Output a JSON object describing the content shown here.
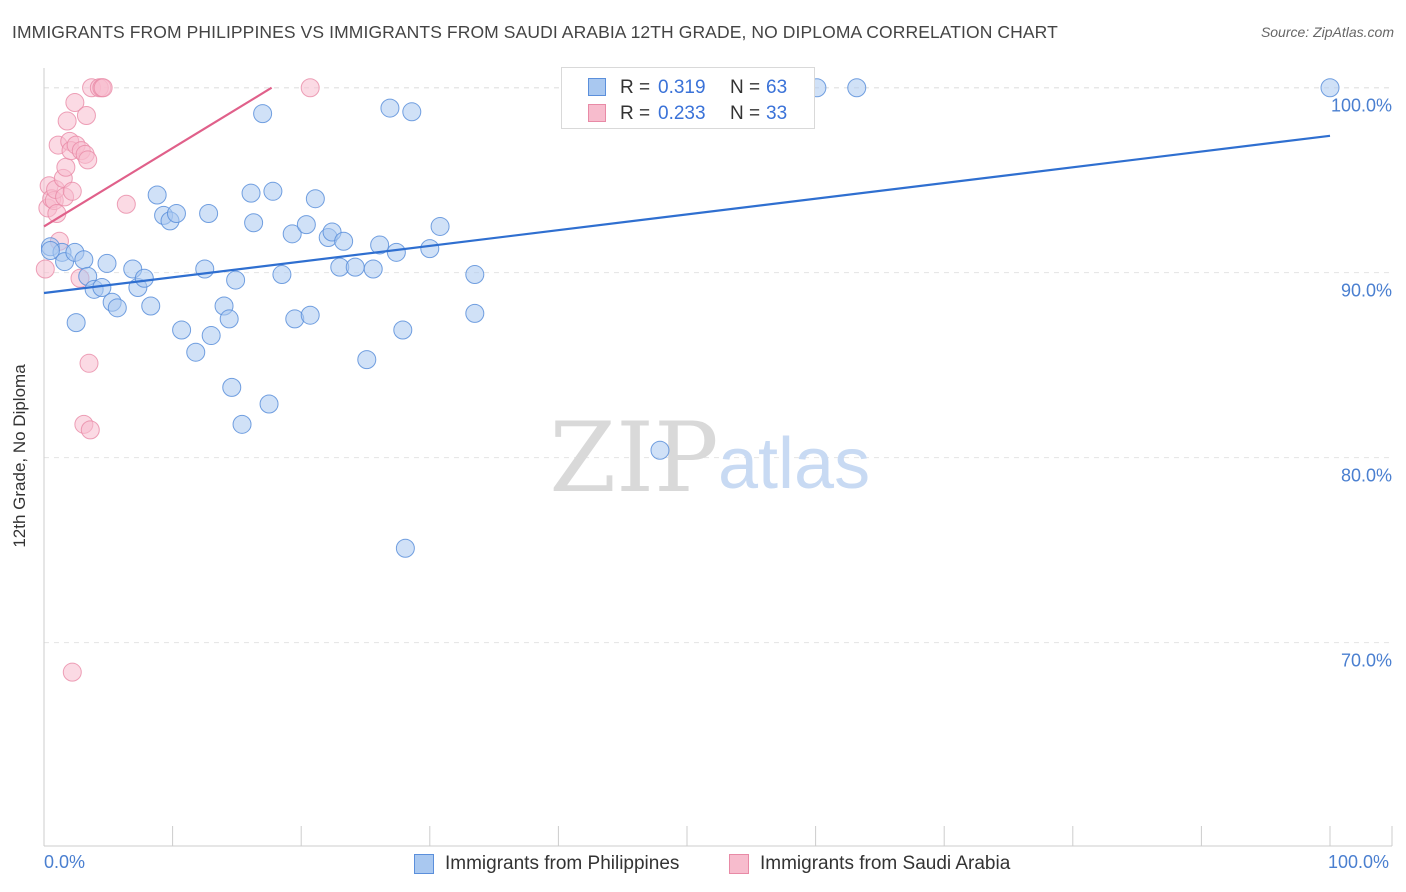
{
  "header": {
    "title": "IMMIGRANTS FROM PHILIPPINES VS IMMIGRANTS FROM SAUDI ARABIA 12TH GRADE, NO DIPLOMA CORRELATION CHART",
    "source": "Source: ZipAtlas.com"
  },
  "watermark": {
    "zip": "ZIP",
    "atlas": "atlas"
  },
  "colors": {
    "blue": "#5b8fdb",
    "blue_fill": "#a9c8f0",
    "blue_line": "#2f6fd0",
    "pink": "#e88aa6",
    "pink_fill": "#f7bccd",
    "pink_line": "#e0608a",
    "tick_label": "#4a7fd0"
  },
  "legend": {
    "rows": [
      {
        "r_label": "R =",
        "r_value": "0.319",
        "n_label": "N =",
        "n_value": "63"
      },
      {
        "r_label": "R =",
        "r_value": "0.233",
        "n_label": "N =",
        "n_value": "33"
      }
    ]
  },
  "bottom_legend": {
    "series1": "Immigrants from Philippines",
    "series2": "Immigrants from Saudi Arabia"
  },
  "chart_data": {
    "type": "scatter",
    "title": "IMMIGRANTS FROM PHILIPPINES VS IMMIGRANTS FROM SAUDI ARABIA 12TH GRADE, NO DIPLOMA CORRELATION CHART",
    "xlabel": "",
    "ylabel": "12th Grade, No Diploma",
    "xlim": [
      0,
      100
    ],
    "ylim": [
      59,
      101.5
    ],
    "x_tick_labels": [
      "0.0%",
      "100.0%"
    ],
    "y_ticks": [
      70,
      80,
      90,
      100
    ],
    "y_tick_labels": [
      "70.0%",
      "80.0%",
      "90.0%",
      "100.0%"
    ],
    "grid": true,
    "series": [
      {
        "name": "Immigrants from Philippines",
        "R": 0.319,
        "N": 63,
        "trend": {
          "x": [
            0,
            100
          ],
          "y": [
            88.9,
            97.4
          ]
        },
        "points": [
          [
            0.5,
            91.4
          ],
          [
            1.4,
            91.1
          ],
          [
            1.6,
            90.6
          ],
          [
            2.4,
            91.1
          ],
          [
            3.1,
            90.7
          ],
          [
            2.5,
            87.3
          ],
          [
            3.4,
            89.8
          ],
          [
            3.9,
            89.1
          ],
          [
            4.5,
            89.2
          ],
          [
            4.9,
            90.5
          ],
          [
            5.3,
            88.4
          ],
          [
            5.7,
            88.1
          ],
          [
            6.9,
            90.2
          ],
          [
            7.3,
            89.2
          ],
          [
            7.8,
            89.7
          ],
          [
            8.3,
            88.2
          ],
          [
            8.8,
            94.2
          ],
          [
            9.3,
            93.1
          ],
          [
            9.8,
            92.8
          ],
          [
            10.3,
            93.2
          ],
          [
            10.7,
            86.9
          ],
          [
            11.8,
            85.7
          ],
          [
            12.5,
            90.2
          ],
          [
            12.8,
            93.2
          ],
          [
            13.0,
            86.6
          ],
          [
            14.0,
            88.2
          ],
          [
            14.4,
            87.5
          ],
          [
            14.9,
            89.6
          ],
          [
            14.6,
            83.8
          ],
          [
            15.4,
            81.8
          ],
          [
            16.1,
            94.3
          ],
          [
            16.3,
            92.7
          ],
          [
            17.0,
            98.6
          ],
          [
            17.5,
            82.9
          ],
          [
            17.8,
            94.4
          ],
          [
            18.5,
            89.9
          ],
          [
            19.3,
            92.1
          ],
          [
            19.5,
            87.5
          ],
          [
            20.4,
            92.6
          ],
          [
            20.7,
            87.7
          ],
          [
            21.1,
            94.0
          ],
          [
            22.1,
            91.9
          ],
          [
            22.4,
            92.2
          ],
          [
            23.0,
            90.3
          ],
          [
            23.3,
            91.7
          ],
          [
            24.2,
            90.3
          ],
          [
            25.1,
            85.3
          ],
          [
            25.6,
            90.2
          ],
          [
            26.1,
            91.5
          ],
          [
            26.9,
            98.9
          ],
          [
            27.4,
            91.1
          ],
          [
            27.9,
            86.9
          ],
          [
            28.1,
            75.1
          ],
          [
            28.6,
            98.7
          ],
          [
            30.0,
            91.3
          ],
          [
            30.8,
            92.5
          ],
          [
            33.5,
            89.9
          ],
          [
            33.5,
            87.8
          ],
          [
            47.9,
            80.4
          ],
          [
            60.1,
            100.0
          ],
          [
            63.2,
            100.0
          ],
          [
            100.0,
            100.0
          ],
          [
            0.5,
            91.2
          ]
        ]
      },
      {
        "name": "Immigrants from Saudi Arabia",
        "R": 0.233,
        "N": 33,
        "trend": {
          "x": [
            0,
            17.7
          ],
          "y": [
            92.5,
            100.0
          ]
        },
        "points": [
          [
            0.1,
            90.2
          ],
          [
            0.3,
            93.5
          ],
          [
            0.4,
            94.7
          ],
          [
            0.6,
            94.0
          ],
          [
            0.8,
            93.9
          ],
          [
            0.9,
            94.5
          ],
          [
            1.0,
            93.2
          ],
          [
            1.1,
            96.9
          ],
          [
            1.2,
            91.7
          ],
          [
            1.5,
            95.1
          ],
          [
            1.6,
            94.1
          ],
          [
            1.7,
            95.7
          ],
          [
            1.8,
            98.2
          ],
          [
            2.0,
            97.1
          ],
          [
            2.1,
            96.6
          ],
          [
            2.2,
            68.4
          ],
          [
            2.2,
            94.4
          ],
          [
            2.4,
            99.2
          ],
          [
            2.5,
            96.9
          ],
          [
            2.8,
            89.7
          ],
          [
            2.9,
            96.6
          ],
          [
            3.1,
            81.8
          ],
          [
            3.2,
            96.4
          ],
          [
            3.3,
            98.5
          ],
          [
            3.4,
            96.1
          ],
          [
            3.5,
            85.1
          ],
          [
            3.6,
            81.5
          ],
          [
            3.7,
            100.0
          ],
          [
            4.3,
            100.0
          ],
          [
            4.5,
            100.0
          ],
          [
            4.6,
            100.0
          ],
          [
            6.4,
            93.7
          ],
          [
            20.7,
            100.0
          ]
        ]
      }
    ]
  }
}
